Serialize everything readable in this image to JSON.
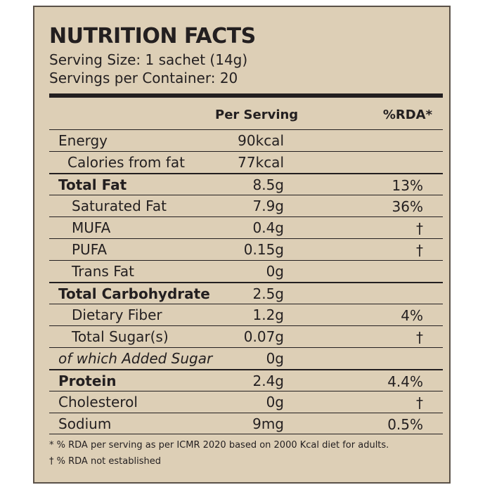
{
  "label": {
    "title": "NUTRITION FACTS",
    "serving_size": "Serving Size: 1 sachet (14g)",
    "servings_per_container": "Servings per Container: 20",
    "columns": {
      "per_serving": "Per Serving",
      "rda": "%RDA*"
    },
    "rows": [
      {
        "name": "Energy",
        "amount": "90kcal",
        "rda": ""
      },
      {
        "name": "Calories from fat",
        "amount": "77kcal",
        "rda": ""
      },
      {
        "name": "Total Fat",
        "amount": "8.5g",
        "rda": "13%"
      },
      {
        "name": "Saturated Fat",
        "amount": "7.9g",
        "rda": "36%"
      },
      {
        "name": "MUFA",
        "amount": "0.4g",
        "rda": "†"
      },
      {
        "name": "PUFA",
        "amount": "0.15g",
        "rda": "†"
      },
      {
        "name": "Trans Fat",
        "amount": "0g",
        "rda": ""
      },
      {
        "name": "Total Carbohydrate",
        "amount": "2.5g",
        "rda": ""
      },
      {
        "name": "Dietary Fiber",
        "amount": "1.2g",
        "rda": "4%"
      },
      {
        "name": "Total Sugar(s)",
        "amount": "0.07g",
        "rda": "†"
      },
      {
        "name": "of which Added Sugar",
        "amount": "0g",
        "rda": ""
      },
      {
        "name": "Protein",
        "amount": "2.4g",
        "rda": "4.4%"
      },
      {
        "name": "Cholesterol",
        "amount": "0g",
        "rda": "†"
      },
      {
        "name": "Sodium",
        "amount": "9mg",
        "rda": "0.5%"
      }
    ],
    "footnotes": [
      "* % RDA per serving as per ICMR 2020 based on 2000 Kcal diet for adults.",
      "† % RDA not established"
    ]
  },
  "colors": {
    "background": "#ddcfb6",
    "border": "#5a5148",
    "text": "#231f20"
  }
}
